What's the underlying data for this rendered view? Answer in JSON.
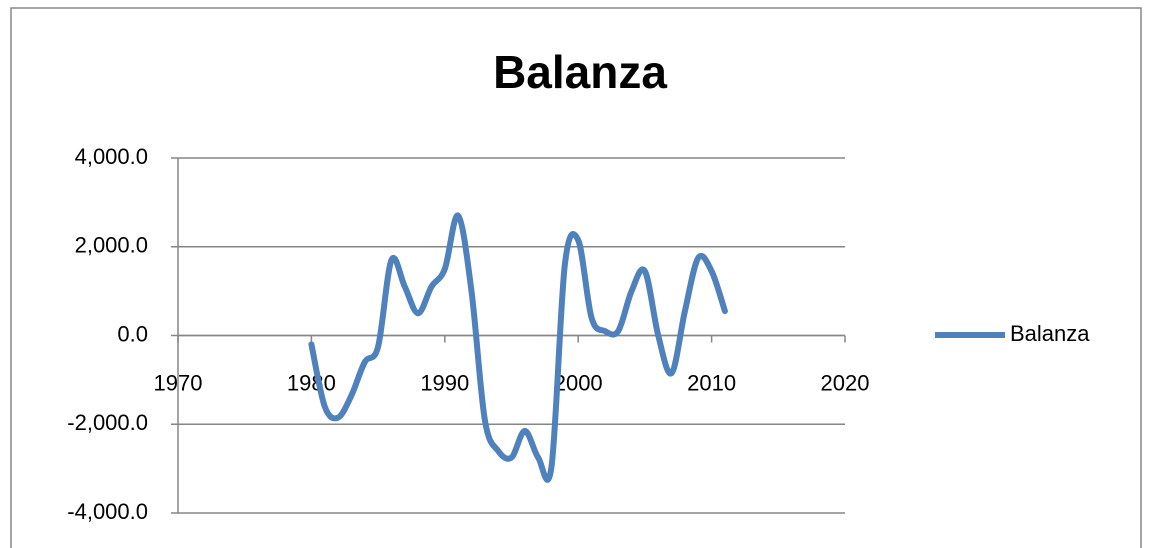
{
  "chart_data": {
    "type": "line",
    "title": "Balanza",
    "x": [
      1980,
      1981,
      1982,
      1983,
      1984,
      1985,
      1986,
      1987,
      1988,
      1989,
      1990,
      1991,
      1992,
      1993,
      1994,
      1995,
      1996,
      1997,
      1998,
      1999,
      2000,
      2001,
      2002,
      2003,
      2004,
      2005,
      2006,
      2007,
      2008,
      2009,
      2010,
      2011
    ],
    "series": [
      {
        "name": "Balanza",
        "color": "#4f81bd",
        "values": [
          -200,
          -1600,
          -1850,
          -1350,
          -600,
          -250,
          1700,
          1100,
          500,
          1100,
          1500,
          2700,
          1000,
          -1900,
          -2600,
          -2750,
          -2150,
          -2750,
          -2950,
          1600,
          2150,
          400,
          100,
          100,
          1000,
          1450,
          0,
          -850,
          550,
          1750,
          1450,
          550
        ]
      }
    ],
    "xlim": [
      1970,
      2020
    ],
    "xticks": [
      1970,
      1980,
      1990,
      2000,
      2010,
      2020
    ],
    "ylim": [
      -4000,
      4000
    ],
    "yticks": [
      {
        "value": -4000,
        "label": "-4,000.0"
      },
      {
        "value": -2000,
        "label": "-2,000.0"
      },
      {
        "value": 0,
        "label": "0.0"
      },
      {
        "value": 2000,
        "label": "2,000.0"
      },
      {
        "value": 4000,
        "label": "4,000.0"
      }
    ],
    "grid": true,
    "legend": "right"
  }
}
